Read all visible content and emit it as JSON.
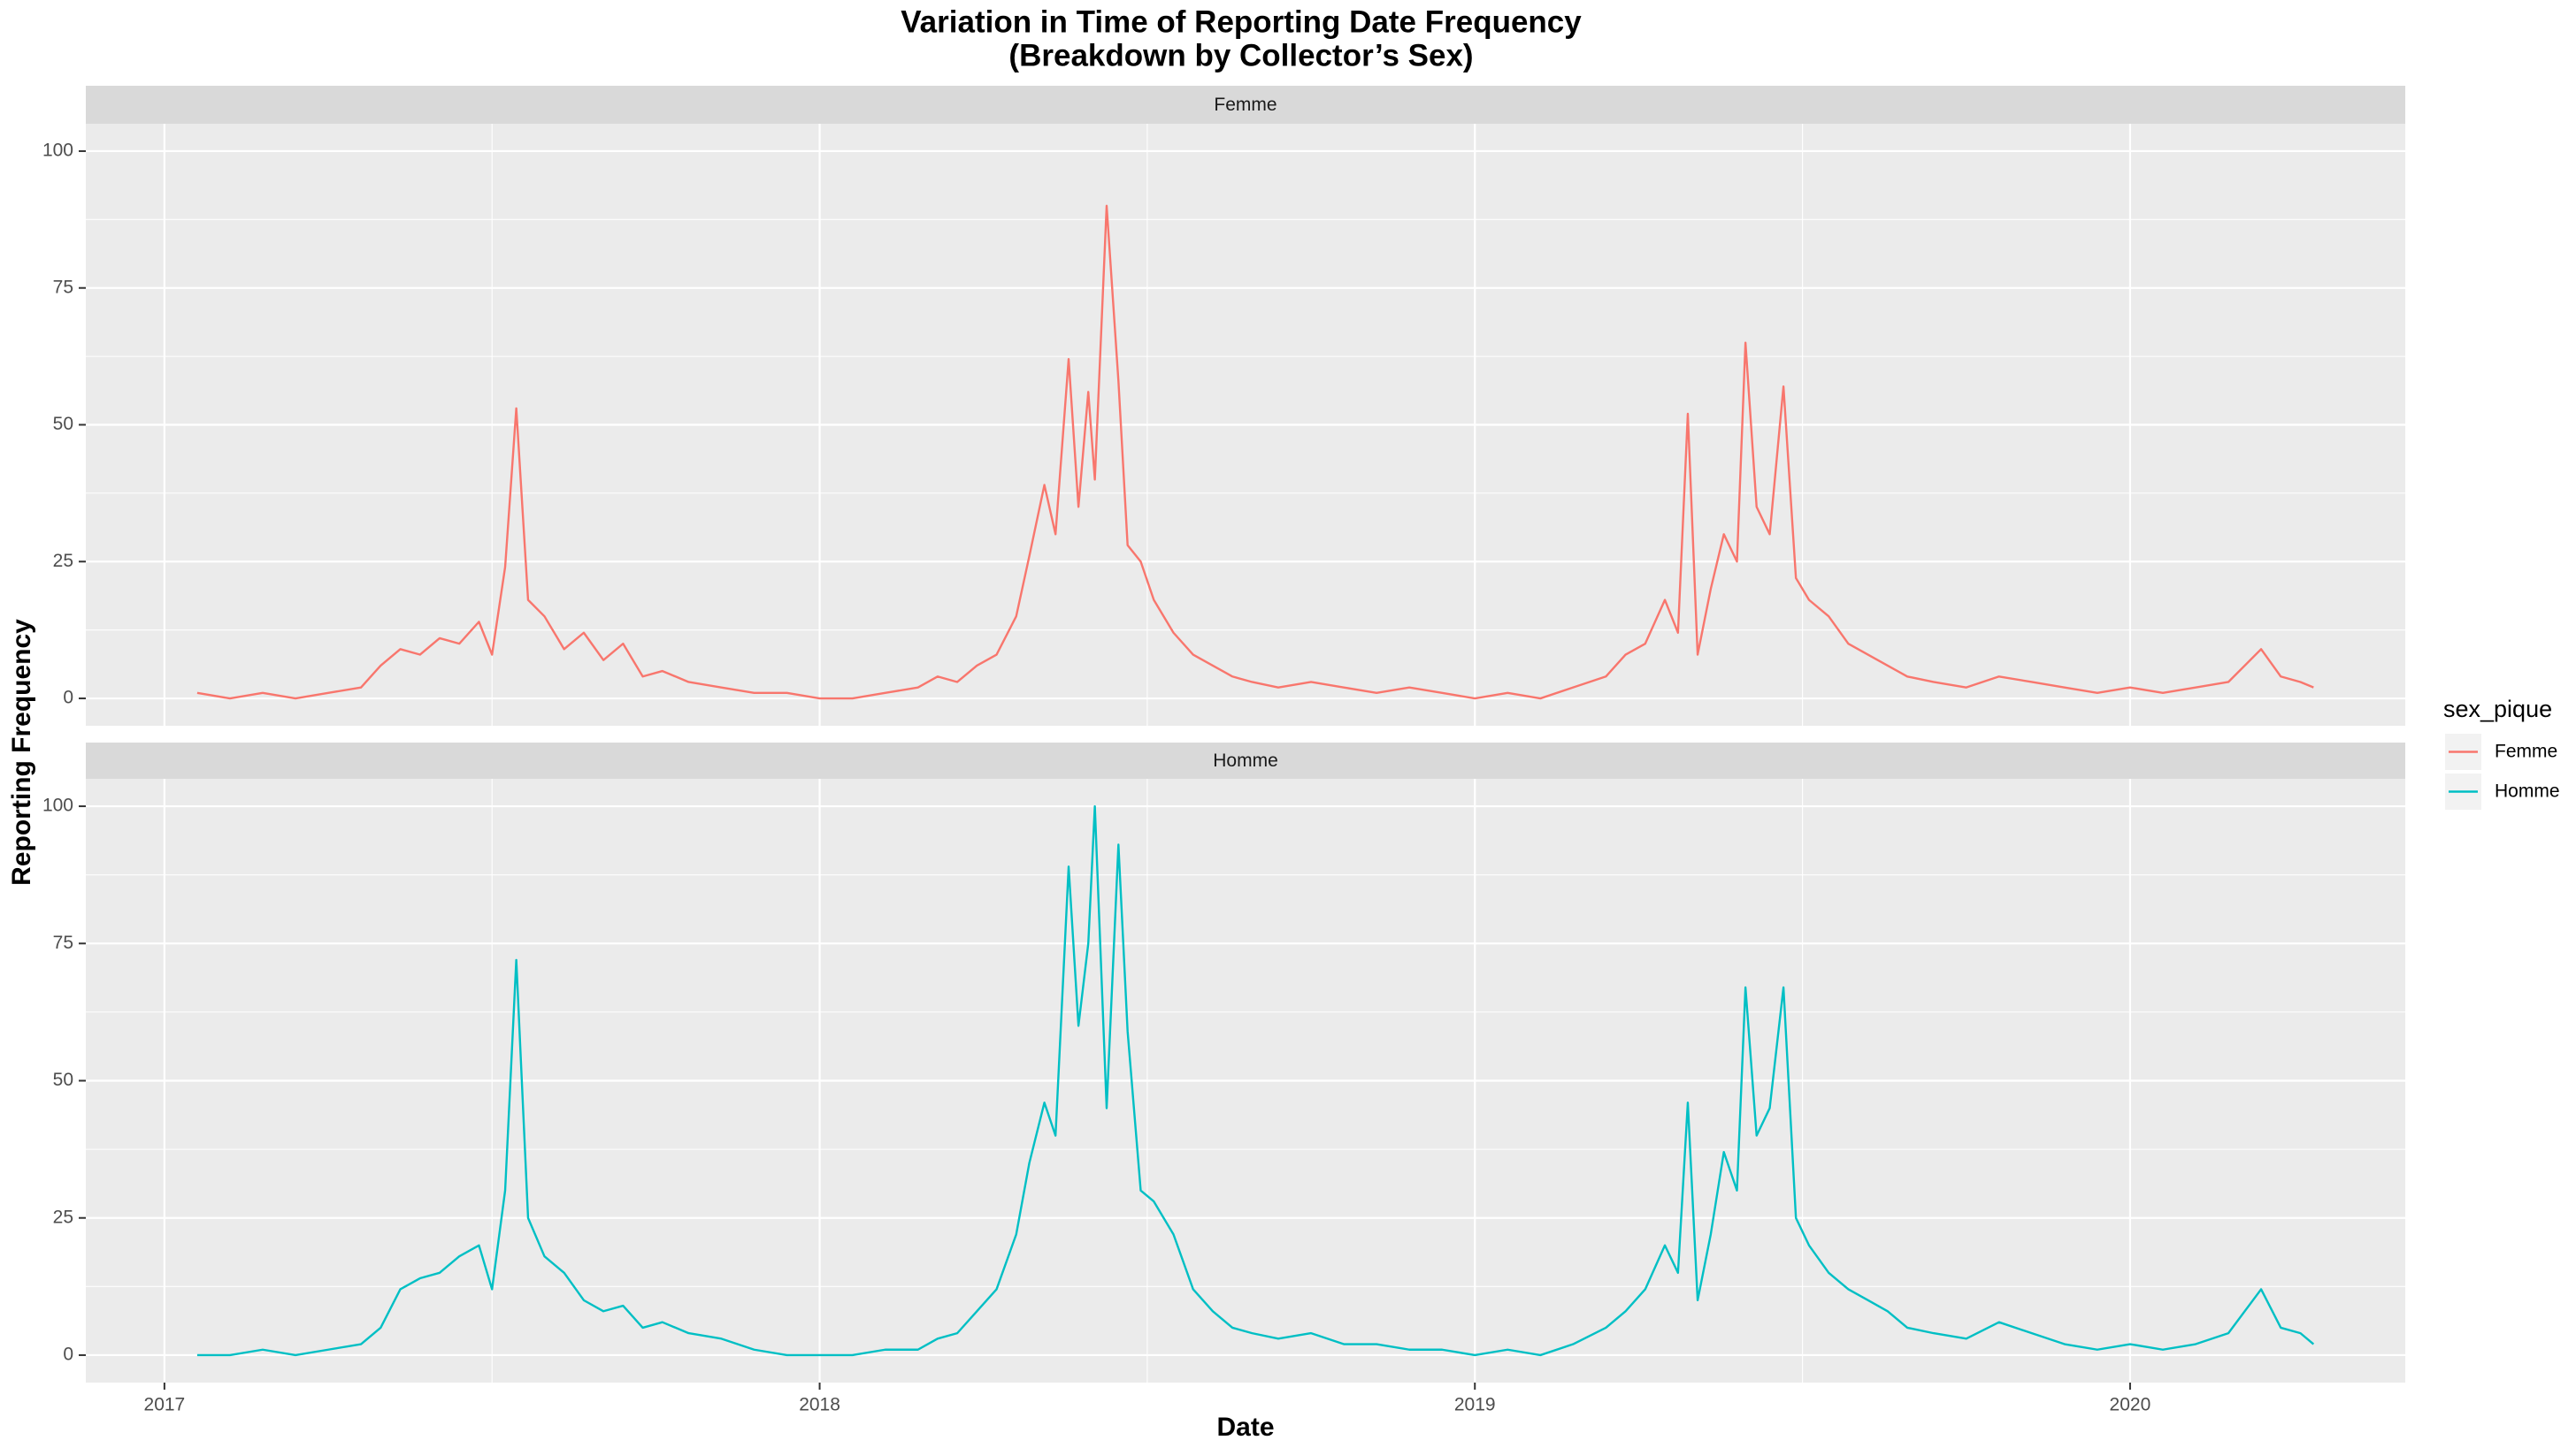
{
  "chart_data": {
    "type": "line",
    "facet": true,
    "title": "Variation in Time of Reporting Date Frequency",
    "subtitle": "(Breakdown by Collector’s Sex)",
    "x_label": "Date",
    "y_label": "Reporting Frequency",
    "legend_title": "sex_pique",
    "grid": true,
    "legend": "right",
    "xlim": [
      2016.88,
      2020.42
    ],
    "xticks": [
      2017,
      2018,
      2019,
      2020
    ],
    "ylim": [
      -5,
      105
    ],
    "yticks": [
      0,
      25,
      50,
      75,
      100
    ],
    "x": [
      2017.05,
      2017.1,
      2017.15,
      2017.2,
      2017.25,
      2017.3,
      2017.33,
      2017.36,
      2017.39,
      2017.42,
      2017.45,
      2017.48,
      2017.5,
      2017.52,
      2017.537,
      2017.555,
      2017.58,
      2017.61,
      2017.64,
      2017.67,
      2017.7,
      2017.73,
      2017.76,
      2017.8,
      2017.85,
      2017.9,
      2017.95,
      2018.0,
      2018.05,
      2018.1,
      2018.15,
      2018.18,
      2018.21,
      2018.24,
      2018.27,
      2018.3,
      2018.32,
      2018.343,
      2018.36,
      2018.38,
      2018.395,
      2018.41,
      2018.42,
      2018.438,
      2018.456,
      2018.47,
      2018.49,
      2018.51,
      2018.54,
      2018.57,
      2018.6,
      2018.63,
      2018.66,
      2018.7,
      2018.75,
      2018.8,
      2018.85,
      2018.9,
      2018.95,
      2019.0,
      2019.05,
      2019.1,
      2019.15,
      2019.2,
      2019.23,
      2019.26,
      2019.29,
      2019.31,
      2019.325,
      2019.34,
      2019.36,
      2019.38,
      2019.4,
      2019.413,
      2019.43,
      2019.45,
      2019.471,
      2019.49,
      2019.51,
      2019.54,
      2019.57,
      2019.6,
      2019.63,
      2019.66,
      2019.7,
      2019.75,
      2019.8,
      2019.85,
      2019.9,
      2019.95,
      2020.0,
      2020.05,
      2020.1,
      2020.15,
      2020.2,
      2020.23,
      2020.26,
      2020.28
    ],
    "series": [
      {
        "name": "Femme",
        "color": "#F8766D",
        "values": [
          1,
          0,
          1,
          0,
          1,
          2,
          6,
          9,
          8,
          11,
          10,
          14,
          8,
          24,
          53,
          18,
          15,
          9,
          12,
          7,
          10,
          4,
          5,
          3,
          2,
          1,
          1,
          0,
          0,
          1,
          2,
          4,
          3,
          6,
          8,
          15,
          26,
          39,
          30,
          62,
          35,
          56,
          40,
          90,
          58,
          28,
          25,
          18,
          12,
          8,
          6,
          4,
          3,
          2,
          3,
          2,
          1,
          2,
          1,
          0,
          1,
          0,
          2,
          4,
          8,
          10,
          18,
          12,
          52,
          8,
          20,
          30,
          25,
          65,
          35,
          30,
          57,
          22,
          18,
          15,
          10,
          8,
          6,
          4,
          3,
          2,
          4,
          3,
          2,
          1,
          2,
          1,
          2,
          3,
          9,
          4,
          3,
          2
        ]
      },
      {
        "name": "Homme",
        "color": "#00BFC4",
        "values": [
          0,
          0,
          1,
          0,
          1,
          2,
          5,
          12,
          14,
          15,
          18,
          20,
          12,
          30,
          72,
          25,
          18,
          15,
          10,
          8,
          9,
          5,
          6,
          4,
          3,
          1,
          0,
          0,
          0,
          1,
          1,
          3,
          4,
          8,
          12,
          22,
          35,
          46,
          40,
          89,
          60,
          75,
          100,
          45,
          93,
          59,
          30,
          28,
          22,
          12,
          8,
          5,
          4,
          3,
          4,
          2,
          2,
          1,
          1,
          0,
          1,
          0,
          2,
          5,
          8,
          12,
          20,
          15,
          46,
          10,
          22,
          37,
          30,
          67,
          40,
          45,
          67,
          25,
          20,
          15,
          12,
          10,
          8,
          5,
          4,
          3,
          6,
          4,
          2,
          1,
          2,
          1,
          2,
          4,
          12,
          5,
          4,
          2
        ]
      }
    ]
  }
}
